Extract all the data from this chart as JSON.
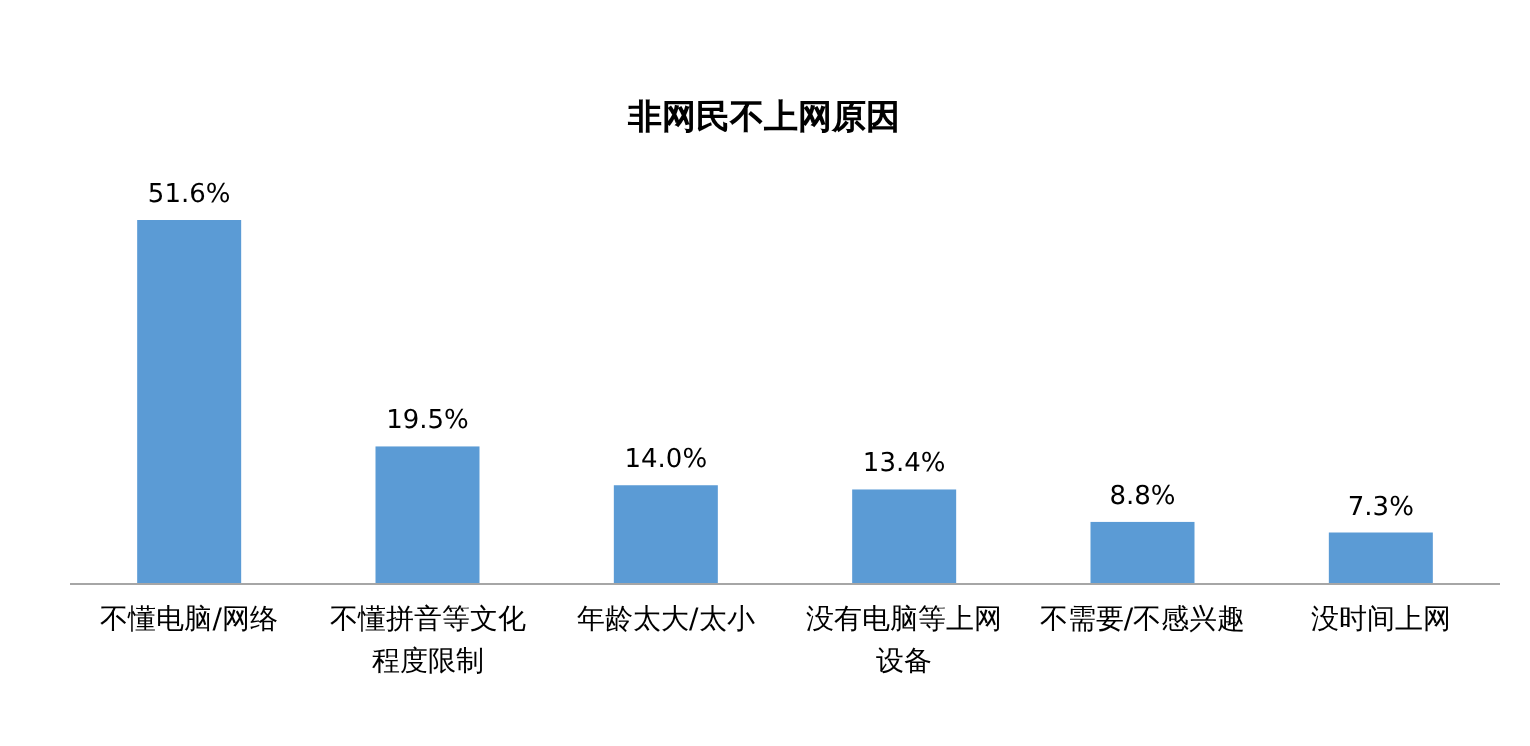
{
  "chart_data": {
    "type": "bar",
    "title": "非网民不上网原因",
    "categories": [
      "不懂电脑/网络",
      "不懂拼音等文化程度限制",
      "年龄太大/太小",
      "没有电脑等上网设备",
      "不需要/不感兴趣",
      "没时间上网"
    ],
    "values": [
      51.6,
      19.5,
      14.0,
      13.4,
      8.8,
      7.3
    ],
    "value_labels": [
      "51.6%",
      "19.5%",
      "14.0%",
      "13.4%",
      "8.8%",
      "7.3%"
    ],
    "color": "#5b9bd5"
  }
}
